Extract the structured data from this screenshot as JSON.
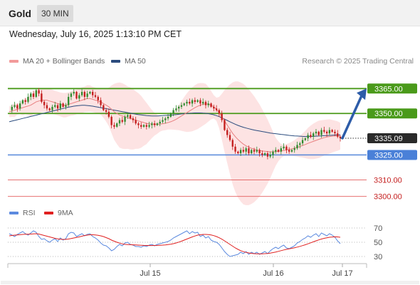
{
  "header": {
    "symbol": "Gold",
    "timeframe": "30 MIN",
    "datetime": "Wednesday, July 16, 2025 1:13:10 PM CET"
  },
  "legend": {
    "ma20_label": "MA 20 + Bollinger Bands",
    "ma50_label": "MA 50",
    "research": "Research © 2025 Trading Central",
    "rsi_label": "RSI",
    "rsi_ma_label": "9MA"
  },
  "colors": {
    "bullish": "#2f8b2f",
    "bearish": "#c41e1e",
    "ma20": "#e88080",
    "ma50": "#2b4c7e",
    "band_fill": "#fde0e0",
    "resistance": "#4a9a1a",
    "support": "#4a80d8",
    "target_arrow": "#2d5ca8",
    "rsi": "#5c8adf",
    "rsi_ma": "#e02020"
  },
  "chart_data": [
    {
      "type": "candlestick",
      "title": "Gold",
      "ylim": [
        3296,
        3372
      ],
      "x_tick_labels": [
        "Jul 15",
        "Jul 16",
        "Jul 17"
      ],
      "levels": [
        {
          "value": 3365.0,
          "label": "3365.00",
          "kind": "resistance"
        },
        {
          "value": 3350.0,
          "label": "3350.00",
          "kind": "resistance"
        },
        {
          "value": 3325.0,
          "label": "3325.00",
          "kind": "pivot"
        },
        {
          "value": 3310.0,
          "label": "3310.00",
          "kind": "support"
        },
        {
          "value": 3300.0,
          "label": "3300.00",
          "kind": "support"
        }
      ],
      "last_price": {
        "value": 3335.09,
        "label": "3335.09"
      },
      "target": {
        "from": 3335.09,
        "to": 3365.0
      },
      "closes": [
        3352,
        3354,
        3355,
        3353,
        3356,
        3358,
        3357,
        3360,
        3362,
        3360,
        3364,
        3362,
        3357,
        3355,
        3353,
        3352,
        3354,
        3355,
        3353,
        3356,
        3354,
        3355,
        3360,
        3362,
        3363,
        3359,
        3361,
        3363,
        3360,
        3362,
        3363,
        3361,
        3360,
        3358,
        3355,
        3352,
        3351,
        3348,
        3343,
        3342,
        3344,
        3346,
        3345,
        3348,
        3349,
        3347,
        3346,
        3344,
        3343,
        3342,
        3343,
        3342,
        3343,
        3344,
        3343,
        3344,
        3345,
        3346,
        3347,
        3348,
        3350,
        3352,
        3353,
        3354,
        3355,
        3356,
        3357,
        3356,
        3358,
        3357,
        3358,
        3356,
        3357,
        3355,
        3356,
        3354,
        3353,
        3352,
        3350,
        3346,
        3340,
        3337,
        3334,
        3330,
        3327,
        3326,
        3328,
        3327,
        3329,
        3326,
        3328,
        3327,
        3328,
        3326,
        3325,
        3326,
        3324,
        3325,
        3327,
        3328,
        3327,
        3329,
        3330,
        3328,
        3327,
        3328,
        3329,
        3331,
        3332,
        3334,
        3335,
        3337,
        3336,
        3338,
        3339,
        3337,
        3340,
        3339,
        3338,
        3340,
        3339,
        3338,
        3336,
        3335.09
      ],
      "series": [
        {
          "name": "MA 20",
          "values": [
            3351,
            3351.5,
            3352,
            3352.5,
            3353,
            3353.5,
            3354,
            3354.5,
            3355,
            3356,
            3357,
            3357.5,
            3358,
            3358,
            3358,
            3357.5,
            3357,
            3356.5,
            3356,
            3355.5,
            3355,
            3355,
            3355.5,
            3356,
            3356.5,
            3357,
            3357.5,
            3358,
            3358.5,
            3359,
            3359,
            3358.5,
            3358,
            3357.5,
            3357,
            3356,
            3355,
            3354,
            3352.5,
            3351,
            3350,
            3349,
            3348.5,
            3348,
            3347.5,
            3347,
            3346.5,
            3346,
            3345.5,
            3345,
            3344.5,
            3344,
            3343.8,
            3343.6,
            3343.5,
            3343.5,
            3343.6,
            3343.8,
            3344.1,
            3344.5,
            3345,
            3345.7,
            3346.5,
            3347.5,
            3348.5,
            3349.5,
            3350.5,
            3351.5,
            3352.5,
            3353.5,
            3354.3,
            3355,
            3355.5,
            3355.8,
            3355.6,
            3355,
            3354,
            3352.5,
            3350.5,
            3348,
            3345.5,
            3343,
            3340.5,
            3338,
            3336,
            3334.3,
            3332.8,
            3331.5,
            3330.5,
            3329.7,
            3329,
            3328.5,
            3328,
            3327.7,
            3327.4,
            3327.2,
            3327,
            3326.9,
            3326.9,
            3327,
            3327.2,
            3327.4,
            3327.7,
            3328,
            3328.3,
            3328.7,
            3329.1,
            3329.6,
            3330.1,
            3330.7,
            3331.3,
            3332,
            3332.6,
            3333.2,
            3333.8,
            3334.4,
            3334.9,
            3335.4,
            3335.8,
            3336.1,
            3336.3,
            3336.4,
            3336.4,
            3336.3
          ]
        },
        {
          "name": "MA 50",
          "values": [
            3345,
            3345.4,
            3345.8,
            3346.2,
            3346.6,
            3347,
            3347.4,
            3347.8,
            3348.2,
            3348.6,
            3349,
            3349.4,
            3349.8,
            3350.2,
            3350.6,
            3351,
            3351.4,
            3351.8,
            3352.2,
            3352.6,
            3353,
            3353.4,
            3353.8,
            3354.1,
            3354.4,
            3354.6,
            3354.8,
            3354.9,
            3354.9,
            3354.8,
            3354.6,
            3354.4,
            3354.1,
            3353.8,
            3353.5,
            3353.2,
            3352.9,
            3352.6,
            3352.3,
            3352,
            3351.7,
            3351.4,
            3351.1,
            3350.8,
            3350.5,
            3350.2,
            3349.9,
            3349.6,
            3349.3,
            3349.1,
            3348.9,
            3348.7,
            3348.6,
            3348.5,
            3348.5,
            3348.5,
            3348.6,
            3348.7,
            3348.8,
            3348.9,
            3349,
            3349.1,
            3349.3,
            3349.5,
            3349.7,
            3349.9,
            3350,
            3350.1,
            3350.2,
            3350.3,
            3350.3,
            3350.3,
            3350.2,
            3350.1,
            3349.9,
            3349.6,
            3349.2,
            3348.7,
            3348.1,
            3347.4,
            3346.6,
            3345.8,
            3345,
            3344.2,
            3343.5,
            3342.8,
            3342.2,
            3341.7,
            3341.2,
            3340.8,
            3340.4,
            3340,
            3339.7,
            3339.4,
            3339.1,
            3338.8,
            3338.5,
            3338.2,
            3338,
            3337.8,
            3337.6,
            3337.4,
            3337.2,
            3337,
            3336.8,
            3336.6,
            3336.5,
            3336.4,
            3336.3,
            3336.2,
            3336.1,
            3336.1,
            3336.1,
            3336.2,
            3336.3,
            3336.4,
            3336.5,
            3336.6,
            3336.7,
            3336.8,
            3336.9,
            3337,
            3337.1,
            3337.1
          ]
        }
      ]
    },
    {
      "type": "line",
      "title": "RSI",
      "ylim": [
        20,
        80
      ],
      "y_ticks": [
        30,
        50,
        70
      ],
      "series": [
        {
          "name": "RSI",
          "values": [
            62,
            60,
            58,
            61,
            63,
            65,
            62,
            60,
            63,
            66,
            64,
            58,
            54,
            55,
            52,
            50,
            53,
            55,
            51,
            56,
            53,
            55,
            62,
            64,
            63,
            58,
            60,
            62,
            59,
            61,
            62,
            58,
            56,
            53,
            49,
            46,
            45,
            42,
            38,
            40,
            44,
            47,
            45,
            49,
            50,
            47,
            46,
            44,
            44,
            43,
            45,
            44,
            46,
            47,
            45,
            47,
            48,
            49,
            50,
            51,
            53,
            56,
            58,
            60,
            62,
            64,
            66,
            62,
            65,
            63,
            64,
            58,
            60,
            56,
            58,
            53,
            51,
            50,
            47,
            42,
            37,
            33,
            30,
            31,
            32,
            33,
            36,
            34,
            37,
            33,
            36,
            34,
            36,
            33,
            35,
            37,
            34,
            38,
            41,
            43,
            41,
            44,
            46,
            42,
            41,
            43,
            45,
            49,
            51,
            54,
            56,
            59,
            57,
            60,
            62,
            58,
            63,
            61,
            59,
            62,
            60,
            57,
            52,
            48
          ]
        },
        {
          "name": "9MA",
          "values": [
            59,
            59.5,
            60,
            60.3,
            60.6,
            61,
            61.2,
            61.3,
            61.5,
            61.8,
            62,
            61.5,
            60.5,
            59.5,
            58.5,
            57.5,
            56.5,
            55.5,
            54.8,
            54.3,
            54,
            54,
            54.5,
            55.2,
            56,
            56.8,
            57.5,
            58.5,
            59.5,
            60,
            60.5,
            60.5,
            60.3,
            59.8,
            59,
            58,
            56.5,
            55,
            53,
            51.5,
            50,
            48.8,
            47.8,
            47,
            46.8,
            46.6,
            46.4,
            46.2,
            46,
            45.8,
            45.6,
            45.5,
            45.4,
            45.4,
            45.5,
            45.6,
            45.8,
            46,
            46.3,
            46.7,
            47.2,
            48,
            49,
            50.2,
            51.5,
            53,
            54.5,
            56,
            57.5,
            58.8,
            60,
            60.5,
            61,
            61,
            60.8,
            60.2,
            59.3,
            58,
            56.3,
            54.3,
            52,
            49.5,
            47,
            44.5,
            42,
            40,
            38.2,
            36.8,
            35.8,
            35,
            34.4,
            34,
            33.8,
            33.7,
            33.8,
            34,
            34.3,
            34.8,
            35.5,
            36.3,
            37.2,
            38.2,
            39.2,
            40,
            40.8,
            41.5,
            42.3,
            43.2,
            44.2,
            45.3,
            46.5,
            47.8,
            49.2,
            50.6,
            52,
            53.3,
            54.5,
            55.5,
            56.3,
            57,
            57.4,
            57.6,
            57.5,
            57
          ]
        }
      ]
    }
  ]
}
